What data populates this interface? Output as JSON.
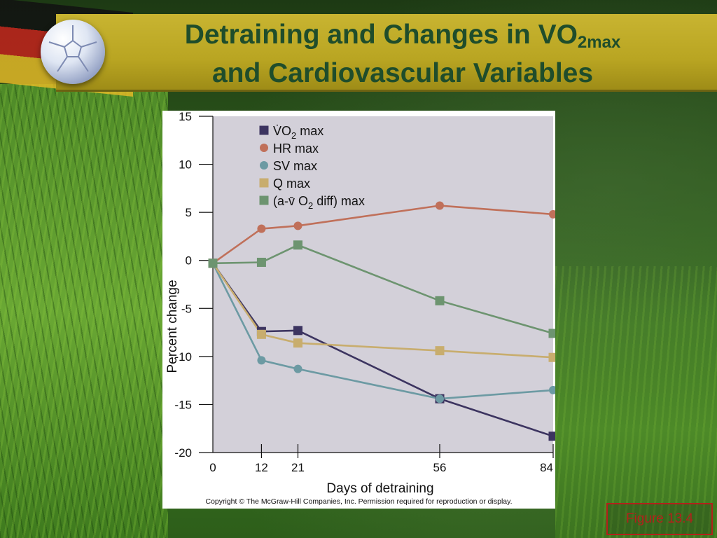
{
  "slide": {
    "title_line1": "Detraining and Changes in VO",
    "title_sub": "2max",
    "title_line2": "and Cardiovascular Variables",
    "copyright": "Copyright © The McGraw-Hill Companies, Inc. Permission required for reproduction or display.",
    "figure_label": "Figure 13.4"
  },
  "colors": {
    "title": "#1f4d2b",
    "plot_bg": "#d3d0d9",
    "vo2": "#3c3460",
    "hr": "#c0705a",
    "sv": "#6c9aa3",
    "q": "#c8ad6e",
    "avo2": "#6d9470",
    "figure_label": "#b3211b"
  },
  "chart_data": {
    "type": "line",
    "xlabel": "Days of detraining",
    "ylabel": "Percent change",
    "x": [
      0,
      12,
      21,
      56,
      84
    ],
    "xticks": [
      0,
      12,
      21,
      56,
      84
    ],
    "xlim": [
      0,
      84
    ],
    "ylim": [
      -20,
      15
    ],
    "yticks": [
      15,
      10,
      5,
      0,
      -5,
      -10,
      -15,
      -20
    ],
    "grid": false,
    "legend_position": "top-left",
    "series": [
      {
        "name": "V̇O2 max",
        "legend": {
          "pre": "V̇O",
          "sub": "2",
          "post": " max"
        },
        "marker": "square",
        "color_key": "vo2",
        "values": [
          -0.3,
          -7.4,
          -7.3,
          -14.4,
          -18.3
        ]
      },
      {
        "name": "HR max",
        "legend": {
          "pre": "HR max",
          "sub": "",
          "post": ""
        },
        "marker": "circle",
        "color_key": "hr",
        "values": [
          -0.3,
          3.3,
          3.6,
          5.7,
          4.8
        ]
      },
      {
        "name": "SV max",
        "legend": {
          "pre": "SV max",
          "sub": "",
          "post": ""
        },
        "marker": "circle",
        "color_key": "sv",
        "values": [
          -0.3,
          -10.4,
          -11.3,
          -14.4,
          -13.5
        ]
      },
      {
        "name": "Q max",
        "legend": {
          "pre": "Q max",
          "sub": "",
          "post": ""
        },
        "marker": "square",
        "color_key": "q",
        "values": [
          -0.3,
          -7.7,
          -8.6,
          -9.4,
          -10.1
        ]
      },
      {
        "name": "(a-v̄ O2 diff) max",
        "legend": {
          "pre": "(a-v̄ O",
          "sub": "2",
          "post": " diff) max"
        },
        "marker": "square",
        "color_key": "avo2",
        "values": [
          -0.3,
          -0.2,
          1.6,
          -4.2,
          -7.6
        ]
      }
    ]
  }
}
